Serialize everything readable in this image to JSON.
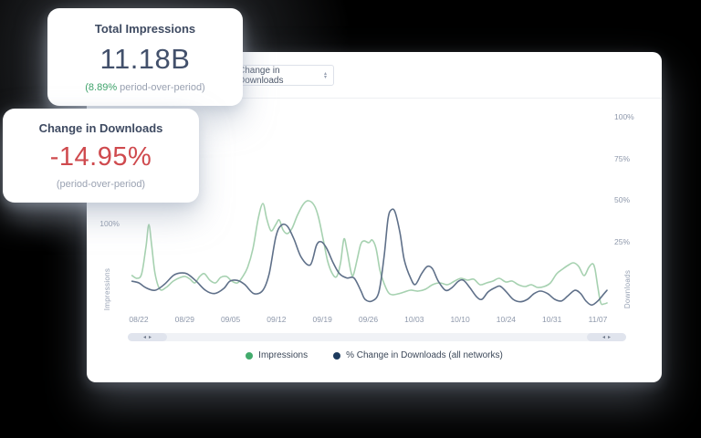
{
  "cards": {
    "impressions": {
      "title": "Total Impressions",
      "value": "11.18B",
      "delta_green": "(8.89%",
      "delta_gray": " period-over-period)"
    },
    "downloads": {
      "title": "Change in Downloads",
      "value": "-14.95%",
      "subtitle": "(period-over-period)"
    }
  },
  "panel": {
    "metric_dropdown": {
      "value": "Change in Downloads",
      "caret_up": "▴",
      "caret_down": "▾"
    }
  },
  "scrollbar": {
    "left_arrow": "◂",
    "right_arrow": "▸"
  },
  "colors": {
    "accent_green": "#3fa36b",
    "negative_red": "#cf4a4e",
    "heading_navy": "#3e4a61",
    "line_green": "#a6d1b0",
    "line_navy": "#5f7089",
    "legend_dot_green": "#42ab6c",
    "legend_dot_navy": "#1d3b5e"
  },
  "chart_data": {
    "type": "line",
    "title": "",
    "x_ticks": [
      "08/22",
      "08/29",
      "09/05",
      "09/12",
      "09/19",
      "09/26",
      "10/03",
      "10/10",
      "10/24",
      "10/31",
      "11/07"
    ],
    "left_axis": {
      "label": "Impressions",
      "ticks": [
        "100%"
      ]
    },
    "right_axis": {
      "label": "Downloads",
      "ticks": [
        "100%",
        "75%",
        "50%",
        "25%"
      ],
      "range_pct": [
        -25,
        130
      ]
    },
    "grid": false,
    "legend_position": "bottom",
    "legend": [
      {
        "label": "Impressions",
        "color": "#42ab6c"
      },
      {
        "label": "% Change in Downloads (all networks)",
        "color": "#1d3b5e"
      }
    ],
    "series": [
      {
        "name": "Impressions",
        "axis": "left",
        "color": "#a6d1b0",
        "unit": "%",
        "points": [
          [
            0.9,
            46
          ],
          [
            1.9,
            43
          ],
          [
            2.9,
            48
          ],
          [
            3.8,
            78
          ],
          [
            4.4,
            102
          ],
          [
            5.0,
            78
          ],
          [
            5.7,
            48
          ],
          [
            6.7,
            31
          ],
          [
            8.0,
            33
          ],
          [
            9.5,
            40
          ],
          [
            11.0,
            44
          ],
          [
            12.0,
            45
          ],
          [
            13.0,
            42
          ],
          [
            14.0,
            38
          ],
          [
            15.0,
            45
          ],
          [
            16.0,
            48
          ],
          [
            17.1,
            41
          ],
          [
            18.3,
            38
          ],
          [
            19.4,
            44
          ],
          [
            20.6,
            45
          ],
          [
            21.7,
            40
          ],
          [
            22.9,
            38
          ],
          [
            24.0,
            45
          ],
          [
            25.0,
            55
          ],
          [
            26.1,
            75
          ],
          [
            27.2,
            108
          ],
          [
            28.2,
            125
          ],
          [
            29.0,
            108
          ],
          [
            29.9,
            95
          ],
          [
            30.9,
            102
          ],
          [
            31.6,
            107
          ],
          [
            32.4,
            96
          ],
          [
            33.3,
            92
          ],
          [
            34.3,
            98
          ],
          [
            35.4,
            112
          ],
          [
            36.6,
            124
          ],
          [
            37.7,
            128
          ],
          [
            38.9,
            123
          ],
          [
            39.8,
            110
          ],
          [
            40.8,
            85
          ],
          [
            41.7,
            62
          ],
          [
            42.7,
            48
          ],
          [
            43.6,
            45
          ],
          [
            44.4,
            60
          ],
          [
            45.1,
            86
          ],
          [
            45.7,
            75
          ],
          [
            46.5,
            52
          ],
          [
            47.0,
            46
          ],
          [
            47.8,
            62
          ],
          [
            48.6,
            80
          ],
          [
            49.3,
            84
          ],
          [
            50.3,
            82
          ],
          [
            51.0,
            85
          ],
          [
            51.8,
            76
          ],
          [
            52.6,
            52
          ],
          [
            53.3,
            40
          ],
          [
            54.3,
            28
          ],
          [
            55.2,
            25
          ],
          [
            56.4,
            26
          ],
          [
            57.7,
            28
          ],
          [
            59.0,
            30
          ],
          [
            60.6,
            29
          ],
          [
            62.1,
            31
          ],
          [
            63.6,
            36
          ],
          [
            65.1,
            38
          ],
          [
            66.7,
            36
          ],
          [
            68.2,
            40
          ],
          [
            69.5,
            43
          ],
          [
            70.9,
            41
          ],
          [
            72.2,
            42
          ],
          [
            73.5,
            36
          ],
          [
            74.9,
            38
          ],
          [
            76.2,
            40
          ],
          [
            77.5,
            43
          ],
          [
            78.9,
            39
          ],
          [
            80.2,
            40
          ],
          [
            81.5,
            36
          ],
          [
            82.9,
            34
          ],
          [
            84.2,
            36
          ],
          [
            85.5,
            33
          ],
          [
            86.9,
            34
          ],
          [
            88.2,
            38
          ],
          [
            89.5,
            48
          ],
          [
            90.7,
            53
          ],
          [
            91.8,
            57
          ],
          [
            93.0,
            60
          ],
          [
            94.1,
            56
          ],
          [
            95.2,
            46
          ],
          [
            96.2,
            55
          ],
          [
            97.0,
            59
          ],
          [
            97.5,
            53
          ],
          [
            98.1,
            33
          ],
          [
            98.7,
            16
          ],
          [
            99.4,
            15
          ],
          [
            100,
            16
          ]
        ]
      },
      {
        "name": "% Change in Downloads (all networks)",
        "axis": "right",
        "color": "#5f7089",
        "unit": "%",
        "points": [
          [
            0.9,
            1
          ],
          [
            2.3,
            0
          ],
          [
            3.8,
            -3
          ],
          [
            5.7,
            -4.5
          ],
          [
            7.6,
            -1
          ],
          [
            9.5,
            4.5
          ],
          [
            10.9,
            6
          ],
          [
            12.4,
            5.5
          ],
          [
            14.3,
            1
          ],
          [
            16.2,
            -4.5
          ],
          [
            18.1,
            -6.5
          ],
          [
            20.0,
            -3.5
          ],
          [
            21.3,
            1
          ],
          [
            22.9,
            1.5
          ],
          [
            24.4,
            -1
          ],
          [
            26.3,
            -6.5
          ],
          [
            28.2,
            -4.5
          ],
          [
            29.5,
            5.5
          ],
          [
            30.9,
            28
          ],
          [
            32.0,
            35
          ],
          [
            33.3,
            34.5
          ],
          [
            34.7,
            26.5
          ],
          [
            36.2,
            15.5
          ],
          [
            38.1,
            11
          ],
          [
            39.4,
            23
          ],
          [
            40.4,
            25
          ],
          [
            41.5,
            21
          ],
          [
            42.9,
            12
          ],
          [
            44.2,
            5.5
          ],
          [
            45.7,
            3
          ],
          [
            47.2,
            3
          ],
          [
            48.6,
            -4.5
          ],
          [
            49.5,
            -10
          ],
          [
            51.0,
            -11
          ],
          [
            52.4,
            -5.5
          ],
          [
            53.5,
            16.5
          ],
          [
            54.3,
            39
          ],
          [
            55.0,
            44.5
          ],
          [
            55.8,
            43
          ],
          [
            56.8,
            30.5
          ],
          [
            57.7,
            14
          ],
          [
            59.0,
            3
          ],
          [
            60.0,
            -1
          ],
          [
            61.3,
            5.5
          ],
          [
            62.5,
            10
          ],
          [
            63.6,
            8.5
          ],
          [
            64.8,
            1
          ],
          [
            66.3,
            -4.5
          ],
          [
            67.6,
            -3
          ],
          [
            69.0,
            1
          ],
          [
            70.1,
            1.5
          ],
          [
            71.4,
            -3
          ],
          [
            72.8,
            -8.5
          ],
          [
            73.9,
            -10
          ],
          [
            75.2,
            -5.5
          ],
          [
            76.6,
            -3
          ],
          [
            77.7,
            -2
          ],
          [
            79.0,
            -5.5
          ],
          [
            80.4,
            -10
          ],
          [
            81.9,
            -11.5
          ],
          [
            83.4,
            -10
          ],
          [
            84.8,
            -6.5
          ],
          [
            86.1,
            -5
          ],
          [
            87.6,
            -6.5
          ],
          [
            89.1,
            -10
          ],
          [
            90.5,
            -11
          ],
          [
            91.8,
            -8
          ],
          [
            93.3,
            -4.5
          ],
          [
            94.5,
            -6.5
          ],
          [
            95.6,
            -11
          ],
          [
            96.8,
            -13.5
          ],
          [
            98.1,
            -11
          ],
          [
            99.4,
            -6.5
          ],
          [
            100,
            -4.5
          ]
        ]
      }
    ]
  }
}
